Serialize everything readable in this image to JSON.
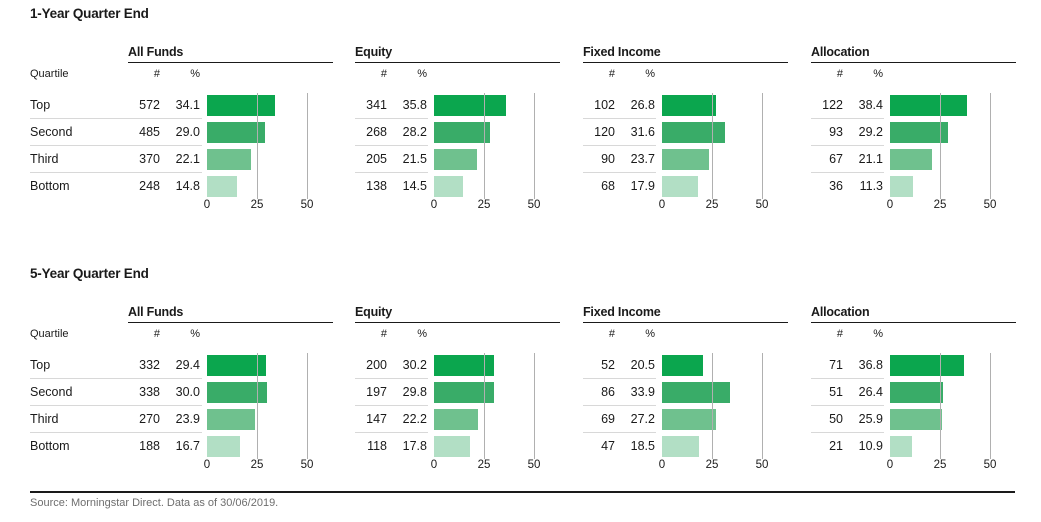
{
  "bar_colors": [
    "#0ba64e",
    "#39ac68",
    "#6fc18e",
    "#b2dfc5"
  ],
  "grid_color": "#b0b0b0",
  "footer": {
    "source": "Source: Morningstar Direct. Data as of 30/06/2019."
  },
  "sections": [
    {
      "title": "1-Year Quarter End",
      "quartile_header": "Quartile",
      "quartiles": [
        "Top",
        "Second",
        "Third",
        "Bottom"
      ],
      "axis_ticks": [
        "0",
        "25",
        "50"
      ],
      "groups": [
        {
          "label": "All Funds",
          "count_header": "#",
          "pct_header": "%",
          "rows": [
            {
              "count": "572",
              "pct": "34.1"
            },
            {
              "count": "485",
              "pct": "29.0"
            },
            {
              "count": "370",
              "pct": "22.1"
            },
            {
              "count": "248",
              "pct": "14.8"
            }
          ]
        },
        {
          "label": "Equity",
          "count_header": "#",
          "pct_header": "%",
          "rows": [
            {
              "count": "341",
              "pct": "35.8"
            },
            {
              "count": "268",
              "pct": "28.2"
            },
            {
              "count": "205",
              "pct": "21.5"
            },
            {
              "count": "138",
              "pct": "14.5"
            }
          ]
        },
        {
          "label": "Fixed Income",
          "count_header": "#",
          "pct_header": "%",
          "rows": [
            {
              "count": "102",
              "pct": "26.8"
            },
            {
              "count": "120",
              "pct": "31.6"
            },
            {
              "count": "90",
              "pct": "23.7"
            },
            {
              "count": "68",
              "pct": "17.9"
            }
          ]
        },
        {
          "label": "Allocation",
          "count_header": "#",
          "pct_header": "%",
          "rows": [
            {
              "count": "122",
              "pct": "38.4"
            },
            {
              "count": "93",
              "pct": "29.2"
            },
            {
              "count": "67",
              "pct": "21.1"
            },
            {
              "count": "36",
              "pct": "11.3"
            }
          ]
        }
      ]
    },
    {
      "title": "5-Year Quarter End",
      "quartile_header": "Quartile",
      "quartiles": [
        "Top",
        "Second",
        "Third",
        "Bottom"
      ],
      "axis_ticks": [
        "0",
        "25",
        "50"
      ],
      "groups": [
        {
          "label": "All Funds",
          "count_header": "#",
          "pct_header": "%",
          "rows": [
            {
              "count": "332",
              "pct": "29.4"
            },
            {
              "count": "338",
              "pct": "30.0"
            },
            {
              "count": "270",
              "pct": "23.9"
            },
            {
              "count": "188",
              "pct": "16.7"
            }
          ]
        },
        {
          "label": "Equity",
          "count_header": "#",
          "pct_header": "%",
          "rows": [
            {
              "count": "200",
              "pct": "30.2"
            },
            {
              "count": "197",
              "pct": "29.8"
            },
            {
              "count": "147",
              "pct": "22.2"
            },
            {
              "count": "118",
              "pct": "17.8"
            }
          ]
        },
        {
          "label": "Fixed Income",
          "count_header": "#",
          "pct_header": "%",
          "rows": [
            {
              "count": "52",
              "pct": "20.5"
            },
            {
              "count": "86",
              "pct": "33.9"
            },
            {
              "count": "69",
              "pct": "27.2"
            },
            {
              "count": "47",
              "pct": "18.5"
            }
          ]
        },
        {
          "label": "Allocation",
          "count_header": "#",
          "pct_header": "%",
          "rows": [
            {
              "count": "71",
              "pct": "36.8"
            },
            {
              "count": "51",
              "pct": "26.4"
            },
            {
              "count": "50",
              "pct": "25.9"
            },
            {
              "count": "21",
              "pct": "10.9"
            }
          ]
        }
      ]
    }
  ],
  "chart_data": [
    {
      "type": "bar",
      "orientation": "horizontal",
      "title": "1-Year Quarter End",
      "categories": [
        "Top",
        "Second",
        "Third",
        "Bottom"
      ],
      "series": [
        {
          "name": "All Funds",
          "counts": [
            572,
            485,
            370,
            248
          ],
          "values": [
            34.1,
            29.0,
            22.1,
            14.8
          ]
        },
        {
          "name": "Equity",
          "counts": [
            341,
            268,
            205,
            138
          ],
          "values": [
            35.8,
            28.2,
            21.5,
            14.5
          ]
        },
        {
          "name": "Fixed Income",
          "counts": [
            102,
            120,
            90,
            68
          ],
          "values": [
            26.8,
            31.6,
            23.7,
            17.9
          ]
        },
        {
          "name": "Allocation",
          "counts": [
            122,
            93,
            67,
            36
          ],
          "values": [
            38.4,
            29.2,
            21.1,
            11.3
          ]
        }
      ],
      "value_unit": "%",
      "xlim": [
        0,
        50
      ],
      "xticks": [
        0,
        25,
        50
      ],
      "grid": true,
      "legend_position": "none"
    },
    {
      "type": "bar",
      "orientation": "horizontal",
      "title": "5-Year Quarter End",
      "categories": [
        "Top",
        "Second",
        "Third",
        "Bottom"
      ],
      "series": [
        {
          "name": "All Funds",
          "counts": [
            332,
            338,
            270,
            188
          ],
          "values": [
            29.4,
            30.0,
            23.9,
            16.7
          ]
        },
        {
          "name": "Equity",
          "counts": [
            200,
            197,
            147,
            118
          ],
          "values": [
            30.2,
            29.8,
            22.2,
            17.8
          ]
        },
        {
          "name": "Fixed Income",
          "counts": [
            52,
            86,
            69,
            47
          ],
          "values": [
            20.5,
            33.9,
            27.2,
            18.5
          ]
        },
        {
          "name": "Allocation",
          "counts": [
            71,
            51,
            50,
            21
          ],
          "values": [
            36.8,
            26.4,
            25.9,
            10.9
          ]
        }
      ],
      "value_unit": "%",
      "xlim": [
        0,
        50
      ],
      "xticks": [
        0,
        25,
        50
      ],
      "grid": true,
      "legend_position": "none"
    }
  ]
}
